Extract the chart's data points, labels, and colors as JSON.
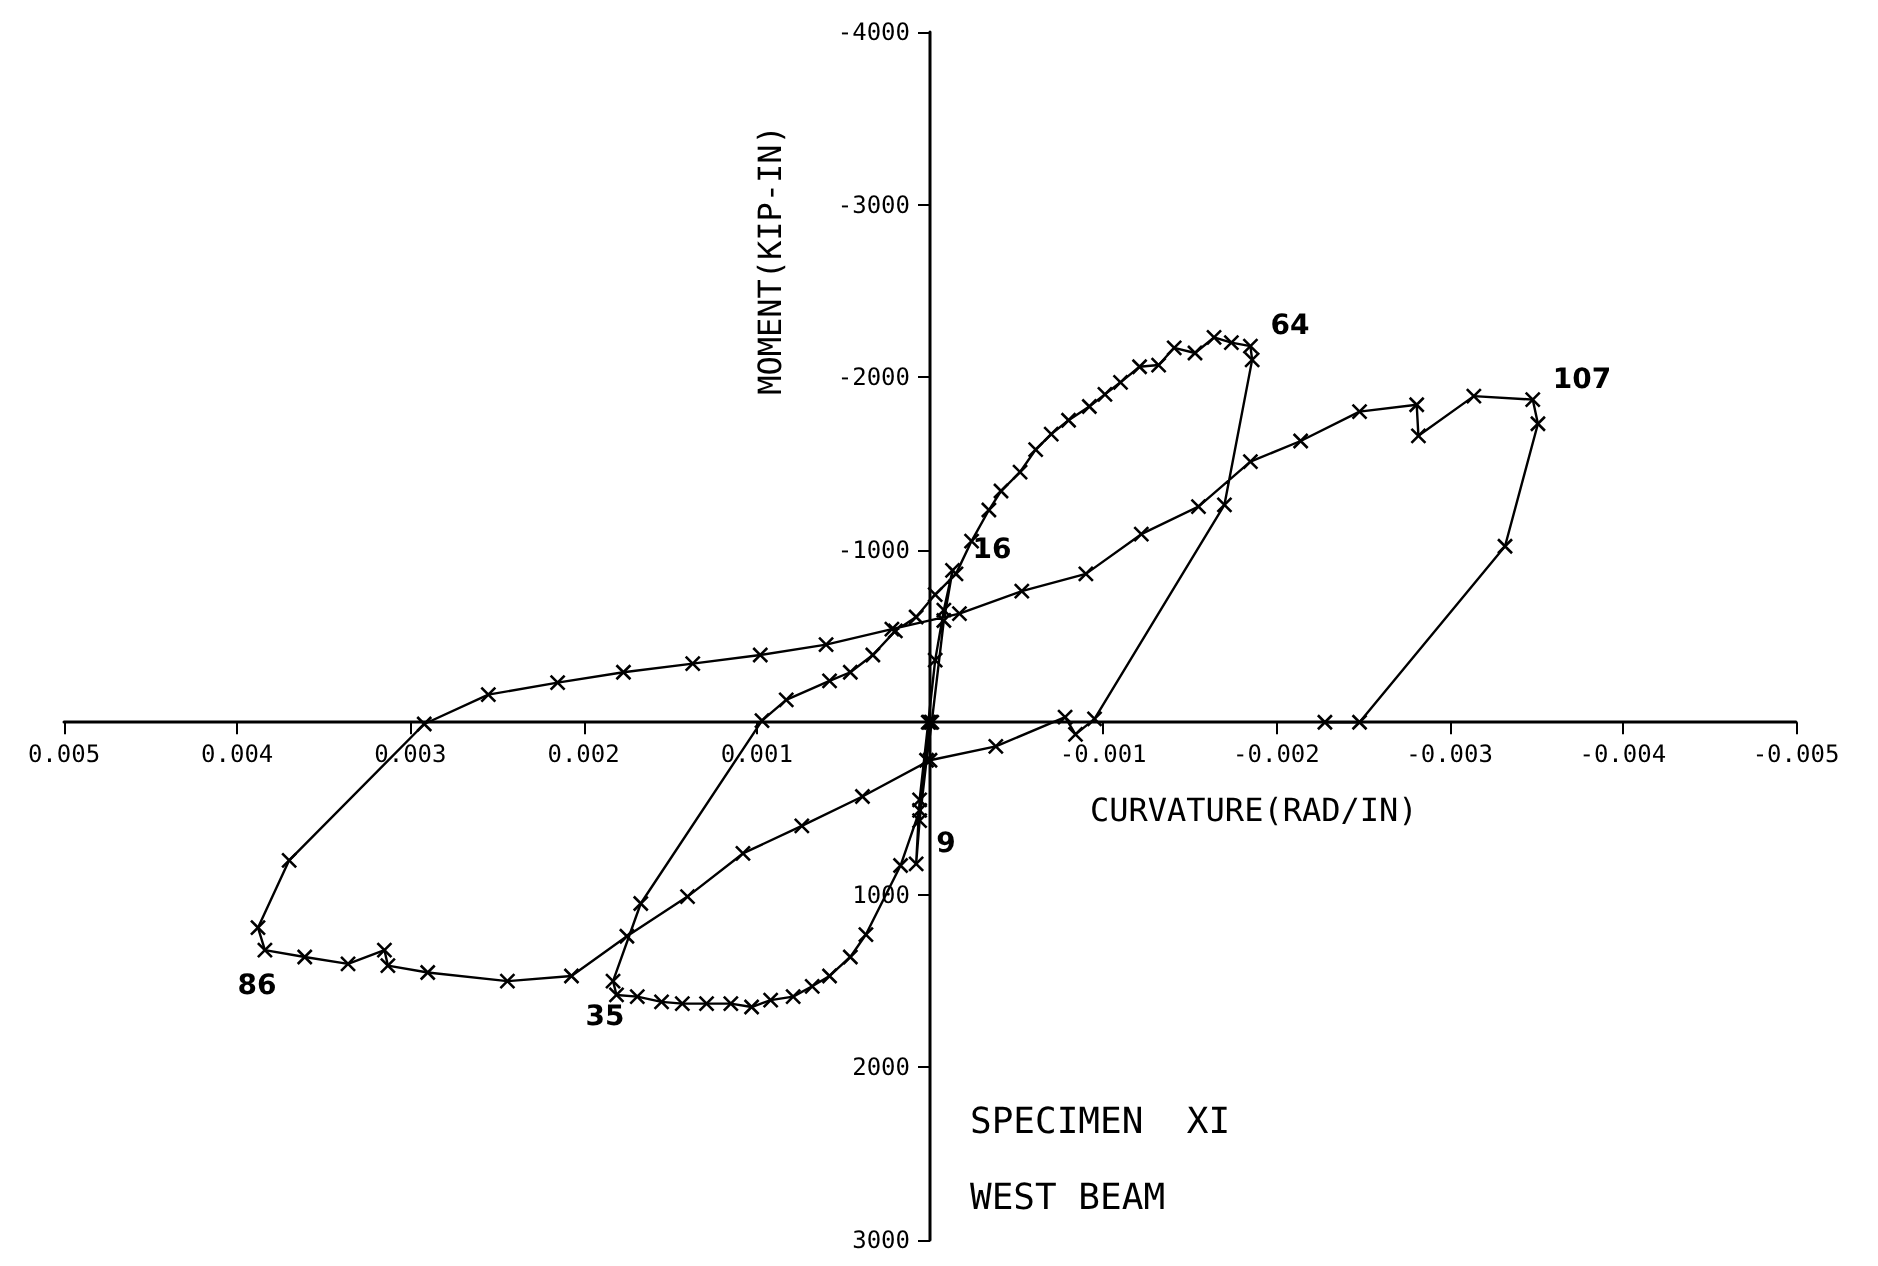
{
  "chart_data": {
    "type": "line",
    "xlabel": "CURVATURE(RAD/IN)",
    "ylabel": "MOMENT(KIP-IN)",
    "xlim": [
      0.005,
      -0.005
    ],
    "ylim": [
      3000,
      -4000
    ],
    "xticks": [
      0.005,
      0.004,
      0.003,
      0.002,
      0.001,
      -0.001,
      -0.002,
      -0.003,
      -0.004,
      -0.005
    ],
    "yticks": [
      -4000,
      -3000,
      -2000,
      -1000,
      1000,
      2000,
      3000
    ],
    "grid": false,
    "marker": "cross",
    "line_style": "solid",
    "series": [
      {
        "color": "#000000",
        "x": [
          0,
          2e-05,
          6e-05,
          8e-05,
          6e-05,
          1e-05,
          -3e-05,
          -8e-05,
          -0.00013,
          -8e-05,
          -1e-05,
          6e-05,
          0.00017,
          0.00037,
          0.00046,
          0.00058,
          0.00068,
          0.00079,
          0.00092,
          0.00103,
          0.00115,
          0.00129,
          0.00143,
          0.00155,
          0.00169,
          0.00181,
          0.00183,
          0.00167,
          0.00097,
          0.00083,
          0.00058,
          0.00046,
          0.00033,
          0.0002,
          8e-05,
          -3e-05,
          -0.00015,
          -0.00024,
          -0.00034,
          -0.00041,
          -0.00052,
          -0.00061,
          -0.0007,
          -0.0008,
          -0.00092,
          -0.00101,
          -0.0011,
          -0.00121,
          -0.00132,
          -0.00141,
          -0.00153,
          -0.00164,
          -0.00174,
          -0.00185,
          -0.00186,
          -0.0017,
          -0.00095,
          -0.00084,
          -0.00078,
          -0.00038,
          0,
          0.00039,
          0.00074,
          0.00108,
          0.0014,
          0.00175,
          0.00207,
          0.00244,
          0.0029,
          0.00313,
          0.00315,
          0.00336,
          0.00361,
          0.00384,
          0.00388,
          0.0037,
          0.00292,
          0.00255,
          0.00215,
          0.00177,
          0.00137,
          0.00098,
          0.0006,
          0.00022,
          -0.00017,
          -0.00053,
          -0.0009,
          -0.00122,
          -0.00155,
          -0.00185,
          -0.00214,
          -0.00248,
          -0.00281,
          -0.00282,
          -0.00314,
          -0.00348,
          -0.00351,
          -0.00332,
          -0.00248,
          -0.00228
        ],
        "values": [
          0,
          220,
          570,
          820,
          450,
          0,
          -360,
          -650,
          -880,
          -590,
          0,
          510,
          830,
          1230,
          1360,
          1470,
          1530,
          1590,
          1610,
          1650,
          1630,
          1630,
          1630,
          1620,
          1590,
          1580,
          1500,
          1050,
          -10,
          -130,
          -240,
          -290,
          -390,
          -530,
          -610,
          -740,
          -860,
          -1050,
          -1230,
          -1340,
          -1450,
          -1580,
          -1670,
          -1750,
          -1830,
          -1900,
          -1970,
          -2060,
          -2070,
          -2170,
          -2140,
          -2230,
          -2200,
          -2180,
          -2100,
          -1260,
          -20,
          70,
          -30,
          140,
          220,
          430,
          600,
          760,
          1010,
          1240,
          1470,
          1500,
          1450,
          1410,
          1320,
          1400,
          1360,
          1320,
          1190,
          800,
          10,
          -160,
          -230,
          -290,
          -340,
          -390,
          -450,
          -540,
          -630,
          -760,
          -860,
          -1090,
          -1250,
          -1510,
          -1630,
          -1800,
          -1840,
          -1660,
          -1890,
          -1870,
          -1730,
          -1020,
          0,
          0
        ]
      }
    ],
    "annotations": [
      {
        "text": "9",
        "x": 8e-05,
        "y": 820
      },
      {
        "text": "16",
        "x": -0.00013,
        "y": -880
      },
      {
        "text": "35",
        "x": 0.00183,
        "y": 1500
      },
      {
        "text": "64",
        "x": -0.00185,
        "y": -2180
      },
      {
        "text": "86",
        "x": 0.00384,
        "y": 1320
      },
      {
        "text": "107",
        "x": -0.00348,
        "y": -1870
      },
      "SPECIMEN  XI",
      "WEST BEAM"
    ]
  }
}
